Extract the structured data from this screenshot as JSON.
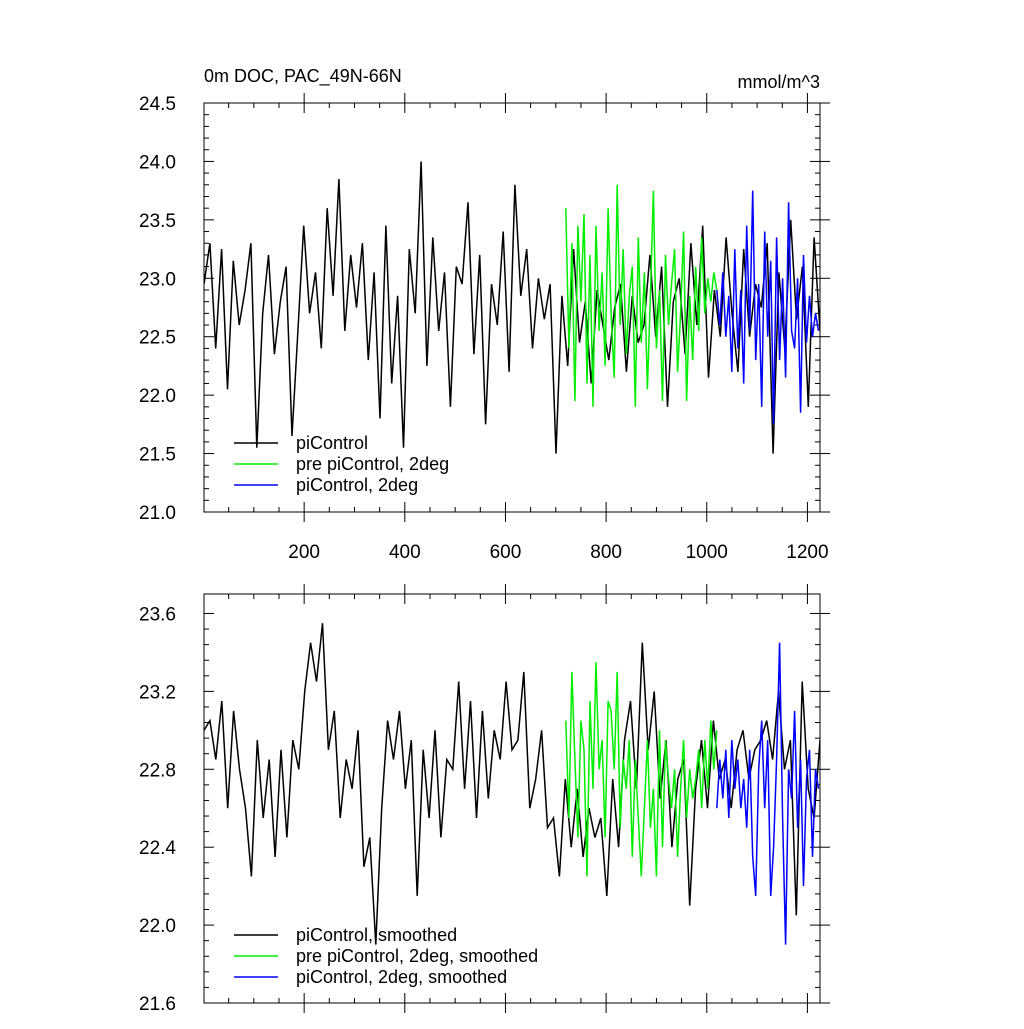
{
  "figure": {
    "title": "0m DOC, PAC_49N-66N",
    "units": "mmol/m^3"
  },
  "chart_data": [
    {
      "type": "line",
      "title": "0m DOC, PAC_49N-66N",
      "units_label": "mmol/m^3",
      "xlim": [
        1,
        1225
      ],
      "ylim": [
        21.0,
        24.5
      ],
      "x_ticks": [
        200,
        400,
        600,
        800,
        1000,
        1200
      ],
      "x_tick_labels": [
        "200",
        "400",
        "600",
        "800",
        "1000",
        "1200"
      ],
      "y_ticks": [
        21.0,
        21.5,
        22.0,
        22.5,
        23.0,
        23.5,
        24.0,
        24.5
      ],
      "y_tick_labels": [
        "21.0",
        "21.5",
        "22.0",
        "22.5",
        "23.0",
        "23.5",
        "24.0",
        "24.5"
      ],
      "grid": false,
      "legend_position": "bottom-left",
      "series": [
        {
          "name": "piControl",
          "color": "#000000",
          "x_start": 1,
          "x_end": 1225,
          "x_step": 12,
          "values": [
            22.95,
            23.3,
            22.4,
            23.25,
            22.05,
            23.15,
            22.6,
            22.9,
            23.3,
            21.55,
            22.7,
            23.2,
            22.35,
            22.8,
            23.1,
            21.65,
            22.55,
            23.45,
            22.7,
            23.05,
            22.4,
            23.6,
            22.85,
            23.85,
            22.55,
            23.2,
            22.75,
            23.3,
            22.3,
            23.05,
            21.8,
            23.45,
            22.1,
            22.85,
            21.55,
            23.25,
            22.7,
            24.0,
            22.25,
            23.35,
            22.55,
            23.05,
            21.9,
            23.1,
            22.95,
            23.65,
            22.35,
            23.2,
            21.75,
            22.95,
            22.6,
            23.4,
            22.2,
            23.8,
            22.85,
            23.25,
            22.4,
            23.0,
            22.65,
            22.95,
            21.5,
            22.85,
            22.25,
            23.25,
            22.45,
            22.8,
            22.1,
            22.9,
            22.6,
            22.3,
            22.75,
            22.95,
            22.2,
            22.85,
            22.45,
            22.6,
            23.2,
            22.5,
            23.1,
            21.9,
            22.8,
            23.0,
            22.35,
            23.3,
            22.6,
            23.45,
            22.15,
            22.9,
            22.5,
            23.35,
            22.7,
            22.2,
            23.25,
            22.5,
            22.95,
            22.75,
            23.3,
            21.5,
            23.05,
            22.4,
            23.5,
            22.65,
            23.1,
            21.9,
            23.35,
            22.55
          ]
        },
        {
          "name": "pre piControl, 2deg",
          "color": "#00ee00",
          "x_start": 720,
          "x_end": 1020,
          "x_step": 6,
          "values": [
            23.6,
            22.4,
            23.3,
            21.95,
            23.45,
            22.8,
            23.55,
            22.1,
            23.2,
            21.9,
            23.45,
            22.55,
            23.05,
            22.25,
            23.6,
            22.7,
            22.15,
            23.8,
            22.6,
            23.25,
            22.35,
            22.85,
            23.1,
            21.9,
            23.35,
            22.45,
            23.05,
            22.05,
            22.85,
            23.75,
            22.4,
            22.9,
            21.95,
            23.2,
            22.6,
            22.95,
            23.25,
            22.2,
            22.7,
            23.4,
            21.95,
            22.85,
            22.3,
            23.1,
            22.55,
            23.35,
            22.7,
            23.0,
            22.8,
            23.05,
            22.9
          ]
        },
        {
          "name": "piControl, 2deg",
          "color": "#0000ff",
          "x_start": 1020,
          "x_end": 1222,
          "x_step": 6,
          "values": [
            22.9,
            22.6,
            23.05,
            22.5,
            22.85,
            22.2,
            23.25,
            22.4,
            22.9,
            22.1,
            23.45,
            22.55,
            23.75,
            22.3,
            22.95,
            21.9,
            23.4,
            22.5,
            23.15,
            21.75,
            23.35,
            22.3,
            23.0,
            22.15,
            23.65,
            22.55,
            22.4,
            23.0,
            21.85,
            23.2,
            22.45,
            22.85,
            22.5,
            22.7,
            22.55
          ]
        }
      ]
    },
    {
      "type": "line",
      "xlim": [
        1,
        1225
      ],
      "ylim": [
        21.6,
        23.7
      ],
      "y_ticks": [
        21.6,
        22.0,
        22.4,
        22.8,
        23.2,
        23.6
      ],
      "y_tick_labels": [
        "21.6",
        "22.0",
        "22.4",
        "22.8",
        "23.2",
        "23.6"
      ],
      "grid": false,
      "legend_position": "bottom-left",
      "series": [
        {
          "name": "piControl, smoothed",
          "color": "#000000",
          "x_start": 1,
          "x_end": 1225,
          "x_step": 12,
          "values": [
            23.0,
            23.05,
            22.85,
            23.15,
            22.6,
            23.1,
            22.8,
            22.6,
            22.25,
            22.95,
            22.55,
            22.85,
            22.35,
            22.9,
            22.45,
            22.95,
            22.8,
            23.2,
            23.45,
            23.25,
            23.55,
            22.9,
            23.1,
            22.55,
            22.85,
            22.7,
            23.0,
            22.3,
            22.45,
            21.9,
            22.6,
            23.05,
            22.85,
            23.1,
            22.7,
            22.95,
            22.15,
            22.9,
            22.55,
            23.0,
            22.45,
            22.85,
            22.8,
            23.25,
            22.7,
            23.15,
            22.55,
            23.1,
            22.65,
            23.0,
            22.85,
            23.25,
            22.9,
            22.95,
            23.3,
            22.6,
            22.75,
            23.0,
            22.5,
            22.55,
            22.25,
            22.75,
            22.4,
            22.7,
            22.35,
            22.6,
            22.45,
            22.55,
            22.15,
            22.75,
            22.4,
            22.95,
            23.15,
            22.7,
            23.45,
            22.9,
            23.2,
            22.65,
            22.95,
            22.4,
            22.75,
            22.85,
            22.1,
            22.7,
            22.95,
            22.6,
            23.05,
            22.75,
            22.85,
            22.6,
            22.9,
            23.0,
            22.75,
            22.9,
            22.95,
            23.05,
            22.85,
            23.2,
            22.8,
            22.95,
            22.05,
            23.25,
            22.7,
            22.55,
            22.95
          ]
        },
        {
          "name": "pre piControl, 2deg, smoothed",
          "color": "#00ee00",
          "x_start": 720,
          "x_end": 1020,
          "x_step": 6,
          "values": [
            23.05,
            22.55,
            23.3,
            22.85,
            22.45,
            23.05,
            22.9,
            22.25,
            23.15,
            22.7,
            23.35,
            22.8,
            22.95,
            22.45,
            23.15,
            23.1,
            22.8,
            23.3,
            22.5,
            22.85,
            22.7,
            22.95,
            22.35,
            22.85,
            22.55,
            22.25,
            22.6,
            22.95,
            22.5,
            22.7,
            22.25,
            23.0,
            22.4,
            22.95,
            22.75,
            22.6,
            22.8,
            22.35,
            22.7,
            22.95,
            22.55,
            22.8,
            22.65,
            22.75,
            22.9,
            22.6,
            22.95,
            22.7,
            23.05,
            22.8,
            23.0
          ]
        },
        {
          "name": "piControl, 2deg, smoothed",
          "color": "#0000ff",
          "x_start": 1020,
          "x_end": 1222,
          "x_step": 6,
          "values": [
            22.6,
            22.85,
            22.65,
            22.9,
            22.55,
            22.95,
            22.7,
            22.85,
            22.6,
            22.75,
            22.5,
            22.9,
            22.35,
            22.15,
            22.8,
            23.05,
            22.6,
            22.95,
            22.15,
            22.4,
            22.85,
            23.45,
            22.55,
            21.9,
            22.8,
            22.65,
            23.1,
            22.5,
            22.85,
            22.2,
            22.75,
            22.9,
            22.35,
            22.8,
            22.7
          ]
        }
      ]
    }
  ]
}
